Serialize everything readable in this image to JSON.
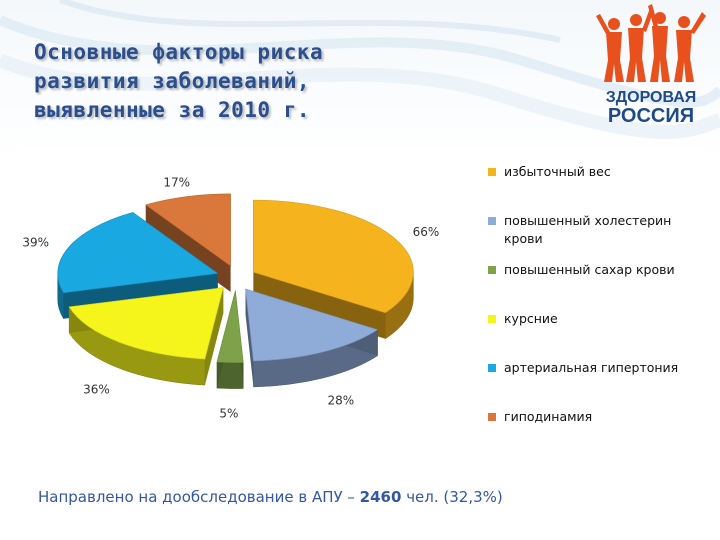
{
  "header": {
    "title_lines": [
      "Основные факторы риска",
      "развития заболеваний,",
      "выявленные  за 2010 г."
    ]
  },
  "logo": {
    "line1": "ЗДОРОВАЯ",
    "line2": "РОССИЯ",
    "color_primary": "#e8501e",
    "color_text": "#1f4a8a"
  },
  "chart_data": {
    "type": "pie",
    "title": "",
    "slices": [
      {
        "name": "избыточный вес",
        "value": 66,
        "label": "66%",
        "color": "#f5b41d"
      },
      {
        "name": "повышенный холестерин крови",
        "value": 28,
        "label": "28%",
        "color": "#8fabd8"
      },
      {
        "name": "повышенный сахар крови",
        "value": 5,
        "label": "5%",
        "color": "#7ea24a"
      },
      {
        "name": "курсние",
        "value": 36,
        "label": "36%",
        "color": "#f5f51c"
      },
      {
        "name": "артериальная гипертония",
        "value": 39,
        "label": "39%",
        "color": "#19a8e0"
      },
      {
        "name": "гиподинамия",
        "value": 17,
        "label": "17%",
        "color": "#d9783a"
      }
    ],
    "legend_position": "right",
    "legend": [
      {
        "lines": [
          "избыточный вес"
        ]
      },
      {
        "lines": [
          "повышенный холестерин",
          "крови"
        ]
      },
      {
        "lines": [
          "повышенный сахар крови"
        ]
      },
      {
        "lines": [
          "курсние"
        ]
      },
      {
        "lines": [
          "артериальная гипертония"
        ]
      },
      {
        "lines": [
          "гиподинамия"
        ]
      }
    ]
  },
  "footer": {
    "text_before": "Направлено на дообследование в АПУ – ",
    "highlight": "2460",
    "text_after": " чел. (32,3%)"
  }
}
